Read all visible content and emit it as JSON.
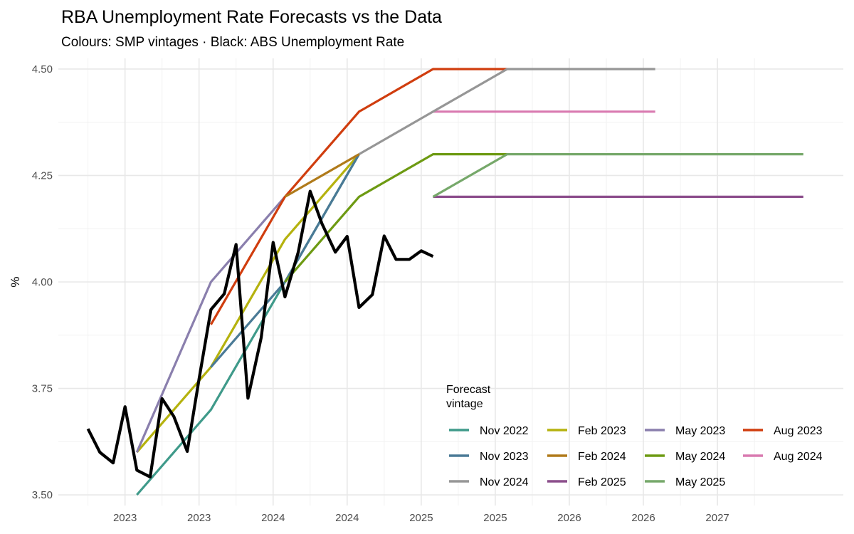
{
  "chart_data": {
    "type": "line",
    "title": "RBA Unemployment Rate Forecasts vs the Data",
    "subtitle": "Colours: SMP vintages · Black: ABS Unemployment Rate",
    "xlabel": "",
    "ylabel": "%",
    "xlim": [
      2022.55,
      2027.85
    ],
    "ylim": [
      3.475,
      4.525
    ],
    "y_ticks": [
      3.5,
      3.75,
      4.0,
      4.25,
      4.5
    ],
    "y_tick_labels": [
      "3.50",
      "3.75",
      "4.00",
      "4.25",
      "4.50"
    ],
    "x_ticks": [
      2023.0,
      2023.5,
      2024.0,
      2024.5,
      2025.0,
      2025.5,
      2026.0,
      2026.5,
      2027.0
    ],
    "x_tick_labels": [
      "2023",
      "2023",
      "2024",
      "2024",
      "2025",
      "2025",
      "2026",
      "2026",
      "2027"
    ],
    "x_minor": [
      2022.75,
      2023.25,
      2023.75,
      2024.25,
      2024.75,
      2025.25,
      2025.75,
      2026.25,
      2026.75,
      2027.25
    ],
    "grid": true,
    "legend_title": [
      "Forecast",
      "vintage"
    ],
    "legend_position": "bottom-right",
    "legend_columns": [
      [
        "Nov 2022",
        "Nov 2023",
        "Nov 2024"
      ],
      [
        "Feb 2023",
        "Feb 2024",
        "Feb 2025"
      ],
      [
        "May 2023",
        "May 2024",
        "May 2025"
      ],
      [
        "Aug 2023",
        "Aug 2024"
      ]
    ],
    "series": [
      {
        "name": "Nov 2022",
        "color": "#3f9a8a",
        "points": [
          [
            2023.08,
            3.5
          ],
          [
            2023.58,
            3.7
          ],
          [
            2024.58,
            4.3
          ]
        ]
      },
      {
        "name": "Feb 2023",
        "color": "#b5b20e",
        "points": [
          [
            2023.08,
            3.6
          ],
          [
            2023.58,
            3.8
          ],
          [
            2024.08,
            4.1
          ],
          [
            2024.58,
            4.3
          ]
        ]
      },
      {
        "name": "May 2023",
        "color": "#8a7fad",
        "points": [
          [
            2023.08,
            3.6
          ],
          [
            2023.58,
            4.0
          ],
          [
            2024.08,
            4.2
          ]
        ]
      },
      {
        "name": "Aug 2023",
        "color": "#d03d0e",
        "points": [
          [
            2023.58,
            3.9
          ],
          [
            2024.08,
            4.2
          ],
          [
            2024.58,
            4.4
          ],
          [
            2025.08,
            4.5
          ],
          [
            2025.58,
            4.5
          ]
        ]
      },
      {
        "name": "Nov 2023",
        "color": "#4a7a96",
        "points": [
          [
            2023.58,
            3.8
          ],
          [
            2024.08,
            4.0
          ],
          [
            2024.58,
            4.3
          ]
        ]
      },
      {
        "name": "Feb 2024",
        "color": "#b07a1a",
        "points": [
          [
            2024.08,
            4.2
          ],
          [
            2024.58,
            4.3
          ]
        ]
      },
      {
        "name": "May 2024",
        "color": "#6d9a12",
        "points": [
          [
            2024.08,
            4.0
          ],
          [
            2024.58,
            4.2
          ],
          [
            2025.08,
            4.3
          ],
          [
            2025.58,
            4.3
          ]
        ]
      },
      {
        "name": "Aug 2024",
        "color": "#d97ab0",
        "points": [
          [
            2025.08,
            4.4
          ],
          [
            2026.58,
            4.4
          ]
        ]
      },
      {
        "name": "Nov 2024",
        "color": "#969696",
        "points": [
          [
            2024.58,
            4.3
          ],
          [
            2025.08,
            4.4
          ],
          [
            2025.58,
            4.5
          ],
          [
            2026.58,
            4.5
          ]
        ]
      },
      {
        "name": "Feb 2025",
        "color": "#8c4e8c",
        "points": [
          [
            2025.08,
            4.2
          ],
          [
            2027.58,
            4.2
          ]
        ]
      },
      {
        "name": "May 2025",
        "color": "#76a86a",
        "points": [
          [
            2025.08,
            4.2
          ],
          [
            2025.58,
            4.3
          ],
          [
            2027.58,
            4.3
          ]
        ]
      }
    ],
    "actual": {
      "name": "ABS Unemployment Rate",
      "color": "#000000",
      "points": [
        [
          2022.75,
          3.655
        ],
        [
          2022.83,
          3.6
        ],
        [
          2022.92,
          3.575
        ],
        [
          2023.0,
          3.707
        ],
        [
          2023.08,
          3.558
        ],
        [
          2023.17,
          3.542
        ],
        [
          2023.25,
          3.726
        ],
        [
          2023.33,
          3.684
        ],
        [
          2023.42,
          3.602
        ],
        [
          2023.5,
          3.772
        ],
        [
          2023.58,
          3.935
        ],
        [
          2023.67,
          3.972
        ],
        [
          2023.75,
          4.088
        ],
        [
          2023.83,
          3.727
        ],
        [
          2023.92,
          3.87
        ],
        [
          2024.0,
          4.093
        ],
        [
          2024.08,
          3.965
        ],
        [
          2024.17,
          4.07
        ],
        [
          2024.25,
          4.213
        ],
        [
          2024.33,
          4.137
        ],
        [
          2024.42,
          4.07
        ],
        [
          2024.5,
          4.107
        ],
        [
          2024.58,
          3.94
        ],
        [
          2024.67,
          3.97
        ],
        [
          2024.75,
          4.108
        ],
        [
          2024.83,
          4.053
        ],
        [
          2024.92,
          4.053
        ],
        [
          2025.0,
          4.073
        ],
        [
          2025.08,
          4.06
        ]
      ]
    }
  }
}
